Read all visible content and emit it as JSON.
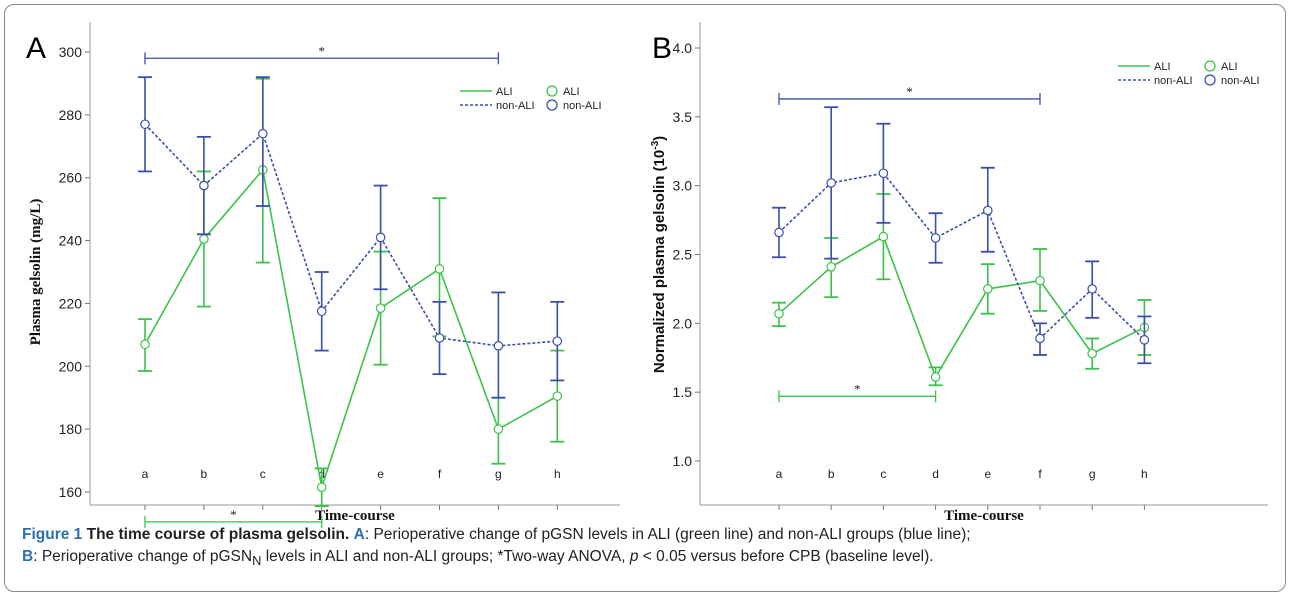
{
  "chart_data": [
    {
      "type": "line",
      "panel_letter": "A",
      "categories": [
        "a",
        "b",
        "c",
        "d",
        "e",
        "f",
        "g",
        "h"
      ],
      "xlabel": "Time-course",
      "ylabel": "Plasma gelsolin (mg/L)",
      "ylim": [
        150,
        300
      ],
      "yticks": [
        "300",
        "280",
        "260",
        "240",
        "220",
        "200",
        "180",
        "160"
      ],
      "ytick_values": [
        300,
        280,
        260,
        240,
        220,
        200,
        180,
        160
      ],
      "legend": {
        "placement": "top-right",
        "line_entries": [
          "ALI",
          "non-ALI"
        ],
        "marker_entries": [
          "ALI",
          "non-ALI"
        ]
      },
      "series": [
        {
          "name": "ALI",
          "color": "#3cc24a",
          "style": "solid",
          "values": [
            207,
            240.5,
            262.5,
            161.5,
            218.5,
            231,
            180,
            190.5
          ],
          "err_low": [
            198.5,
            219,
            233,
            155.5,
            200.5,
            209.5,
            169,
            176
          ],
          "err_high": [
            215,
            262,
            291.5,
            167.5,
            236.5,
            253.5,
            190,
            205
          ]
        },
        {
          "name": "non-ALI",
          "color": "#3b4fa8",
          "style": "dashed",
          "values": [
            277,
            257.5,
            274,
            217.5,
            241,
            209,
            206.5,
            208
          ],
          "err_low": [
            262,
            242,
            251,
            205,
            224.5,
            197.5,
            190,
            195.5
          ],
          "err_high": [
            292,
            273,
            292,
            230,
            257.5,
            220.5,
            223.5,
            220.5
          ]
        }
      ],
      "annotations": [
        {
          "text": "*",
          "from": "a",
          "to": "g",
          "y": 298,
          "color": "#3b4fa8"
        },
        {
          "text": "*",
          "from": "a",
          "to": "d",
          "y": 150.5,
          "color": "#3cc24a"
        }
      ]
    },
    {
      "type": "line",
      "panel_letter": "B",
      "categories": [
        "a",
        "b",
        "c",
        "d",
        "e",
        "f",
        "g",
        "h"
      ],
      "xlabel": "Time-course",
      "ylabel_main": "Normalized plasma gelsolin (10",
      "ylabel_sup": "-3",
      "ylabel_end": ")",
      "ylim": [
        0.9,
        4.1
      ],
      "yticks": [
        "4.0",
        "3.5",
        "3.0",
        "2.5",
        "2.0",
        "1.5",
        "1.0"
      ],
      "ytick_values": [
        4.0,
        3.5,
        3.0,
        2.5,
        2.0,
        1.5,
        1.0
      ],
      "legend": {
        "placement": "top-right",
        "line_entries": [
          "ALI",
          "non-ALI"
        ],
        "marker_entries": [
          "ALI",
          "non-ALI"
        ]
      },
      "series": [
        {
          "name": "ALI",
          "color": "#3cc24a",
          "style": "solid",
          "values": [
            2.07,
            2.41,
            2.63,
            1.61,
            2.25,
            2.31,
            1.78,
            1.97
          ],
          "err_low": [
            1.98,
            2.19,
            2.32,
            1.55,
            2.07,
            2.09,
            1.67,
            1.77
          ],
          "err_high": [
            2.15,
            2.62,
            2.94,
            1.68,
            2.43,
            2.54,
            1.89,
            2.17
          ]
        },
        {
          "name": "non-ALI",
          "color": "#3b4fa8",
          "style": "dashed",
          "values": [
            2.66,
            3.02,
            3.09,
            2.62,
            2.82,
            1.89,
            2.25,
            1.88
          ],
          "err_low": [
            2.48,
            2.47,
            2.73,
            2.44,
            2.52,
            1.77,
            2.04,
            1.71
          ],
          "err_high": [
            2.84,
            3.57,
            3.45,
            2.8,
            3.13,
            2.0,
            2.45,
            2.05
          ]
        }
      ],
      "annotations": [
        {
          "text": "*",
          "from": "a",
          "to": "f",
          "y": 3.63,
          "color": "#3b4fa8"
        },
        {
          "text": "*",
          "from": "a",
          "to": "d",
          "y": 1.47,
          "color": "#3cc24a"
        }
      ]
    }
  ],
  "caption": {
    "figure": "Figure 1",
    "title": "The time course of plasma gelsolin.",
    "panel_a": "A",
    "text_a": ": Perioperative change of pGSN levels in ALI (green line) and non-ALI groups (blue line);",
    "panel_b": "B",
    "text_b1": ": Perioperative change of pGSN",
    "text_b_sub": "N",
    "text_b2": " levels in ALI and non-ALI groups; *Two-way ANOVA, ",
    "text_b_italic": "p",
    "text_b3": " < 0.05 versus before CPB (baseline level)."
  }
}
